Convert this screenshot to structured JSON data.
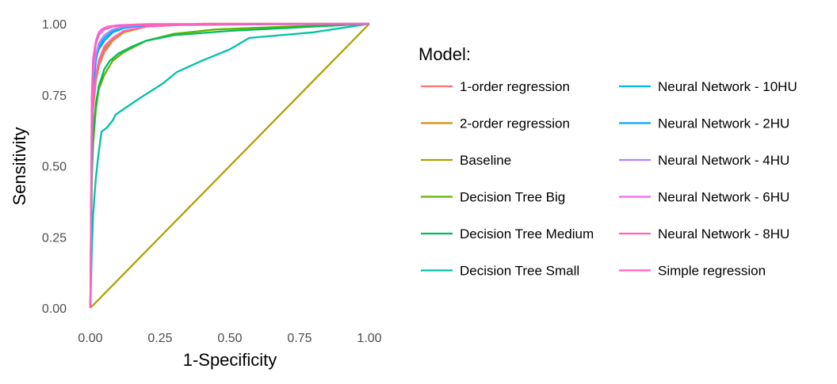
{
  "chart_data": {
    "type": "line",
    "title": "",
    "xlabel": "1-Specificity",
    "ylabel": "Sensitivity",
    "xlim": [
      0,
      1
    ],
    "ylim": [
      0,
      1
    ],
    "x_ticks": [
      "0.00",
      "0.25",
      "0.50",
      "0.75",
      "1.00"
    ],
    "y_ticks": [
      "0.00",
      "0.25",
      "0.50",
      "0.75",
      "1.00"
    ],
    "grid": false,
    "legend_title": "Model:",
    "legend_position": "right",
    "series": [
      {
        "name": "1-order regression",
        "color": "#F8766D",
        "points": [
          [
            0,
            0
          ],
          [
            0.005,
            0.55
          ],
          [
            0.01,
            0.7
          ],
          [
            0.02,
            0.8
          ],
          [
            0.03,
            0.85
          ],
          [
            0.05,
            0.9
          ],
          [
            0.08,
            0.94
          ],
          [
            0.12,
            0.97
          ],
          [
            0.2,
            0.99
          ],
          [
            0.4,
            1.0
          ],
          [
            1,
            1
          ]
        ]
      },
      {
        "name": "2-order regression",
        "color": "#DB8E00",
        "points": [
          [
            0,
            0
          ],
          [
            0.005,
            0.56
          ],
          [
            0.01,
            0.71
          ],
          [
            0.02,
            0.81
          ],
          [
            0.03,
            0.86
          ],
          [
            0.05,
            0.91
          ],
          [
            0.08,
            0.945
          ],
          [
            0.12,
            0.97
          ],
          [
            0.2,
            0.99
          ],
          [
            0.4,
            1.0
          ],
          [
            1,
            1
          ]
        ]
      },
      {
        "name": "Baseline",
        "color": "#AEA200",
        "points": [
          [
            0,
            0
          ],
          [
            1,
            1
          ]
        ]
      },
      {
        "name": "Decision Tree Big",
        "color": "#64B200",
        "points": [
          [
            0,
            0
          ],
          [
            0.005,
            0.45
          ],
          [
            0.01,
            0.58
          ],
          [
            0.02,
            0.7
          ],
          [
            0.03,
            0.77
          ],
          [
            0.05,
            0.82
          ],
          [
            0.08,
            0.87
          ],
          [
            0.12,
            0.9
          ],
          [
            0.2,
            0.94
          ],
          [
            0.3,
            0.965
          ],
          [
            0.45,
            0.98
          ],
          [
            0.7,
            0.99
          ],
          [
            1,
            1
          ]
        ]
      },
      {
        "name": "Decision Tree Medium",
        "color": "#00BD5C",
        "points": [
          [
            0,
            0
          ],
          [
            0.005,
            0.47
          ],
          [
            0.01,
            0.6
          ],
          [
            0.02,
            0.72
          ],
          [
            0.03,
            0.78
          ],
          [
            0.05,
            0.84
          ],
          [
            0.07,
            0.87
          ],
          [
            0.1,
            0.895
          ],
          [
            0.15,
            0.92
          ],
          [
            0.2,
            0.94
          ],
          [
            0.3,
            0.96
          ],
          [
            0.5,
            0.975
          ],
          [
            0.8,
            0.99
          ],
          [
            1,
            1
          ]
        ]
      },
      {
        "name": "Decision Tree Small",
        "color": "#00C1A7",
        "points": [
          [
            0,
            0
          ],
          [
            0.005,
            0.2
          ],
          [
            0.01,
            0.33
          ],
          [
            0.02,
            0.46
          ],
          [
            0.03,
            0.55
          ],
          [
            0.04,
            0.62
          ],
          [
            0.06,
            0.635
          ],
          [
            0.08,
            0.66
          ],
          [
            0.09,
            0.68
          ],
          [
            0.12,
            0.7
          ],
          [
            0.18,
            0.74
          ],
          [
            0.26,
            0.79
          ],
          [
            0.31,
            0.83
          ],
          [
            0.4,
            0.87
          ],
          [
            0.5,
            0.91
          ],
          [
            0.57,
            0.95
          ],
          [
            0.8,
            0.97
          ],
          [
            1,
            1
          ]
        ]
      },
      {
        "name": "Neural Network - 10HU",
        "color": "#00BADE",
        "points": [
          [
            0,
            0
          ],
          [
            0.005,
            0.6
          ],
          [
            0.01,
            0.78
          ],
          [
            0.02,
            0.87
          ],
          [
            0.03,
            0.92
          ],
          [
            0.05,
            0.95
          ],
          [
            0.08,
            0.975
          ],
          [
            0.12,
            0.99
          ],
          [
            0.2,
            0.997
          ],
          [
            1,
            1
          ]
        ]
      },
      {
        "name": "Neural Network - 2HU",
        "color": "#00A6FF",
        "points": [
          [
            0,
            0
          ],
          [
            0.005,
            0.62
          ],
          [
            0.01,
            0.8
          ],
          [
            0.02,
            0.88
          ],
          [
            0.03,
            0.91
          ],
          [
            0.05,
            0.94
          ],
          [
            0.08,
            0.97
          ],
          [
            0.12,
            0.985
          ],
          [
            0.2,
            0.995
          ],
          [
            1,
            1
          ]
        ]
      },
      {
        "name": "Neural Network - 4HU",
        "color": "#B385FF",
        "points": [
          [
            0,
            0
          ],
          [
            0.005,
            0.65
          ],
          [
            0.01,
            0.82
          ],
          [
            0.02,
            0.89
          ],
          [
            0.03,
            0.93
          ],
          [
            0.05,
            0.96
          ],
          [
            0.08,
            0.98
          ],
          [
            0.12,
            0.99
          ],
          [
            0.2,
            0.998
          ],
          [
            1,
            1
          ]
        ]
      },
      {
        "name": "Neural Network - 6HU",
        "color": "#EF67EB",
        "points": [
          [
            0,
            0
          ],
          [
            0.005,
            0.75
          ],
          [
            0.01,
            0.88
          ],
          [
            0.02,
            0.94
          ],
          [
            0.03,
            0.97
          ],
          [
            0.04,
            0.98
          ],
          [
            0.06,
            0.99
          ],
          [
            0.1,
            0.995
          ],
          [
            0.2,
            0.999
          ],
          [
            1,
            1
          ]
        ]
      },
      {
        "name": "Neural Network - 8HU",
        "color": "#FF63B6",
        "points": [
          [
            0,
            0
          ],
          [
            0.005,
            0.72
          ],
          [
            0.01,
            0.86
          ],
          [
            0.02,
            0.93
          ],
          [
            0.03,
            0.96
          ],
          [
            0.05,
            0.98
          ],
          [
            0.08,
            0.99
          ],
          [
            0.15,
            0.997
          ],
          [
            1,
            1
          ]
        ]
      },
      {
        "name": "Simple regression",
        "color": "#FF61C3",
        "points": [
          [
            0,
            0
          ],
          [
            0.005,
            0.58
          ],
          [
            0.01,
            0.72
          ],
          [
            0.02,
            0.82
          ],
          [
            0.03,
            0.87
          ],
          [
            0.05,
            0.92
          ],
          [
            0.08,
            0.95
          ],
          [
            0.12,
            0.975
          ],
          [
            0.2,
            0.99
          ],
          [
            0.4,
            1.0
          ],
          [
            1,
            1
          ]
        ]
      }
    ]
  }
}
